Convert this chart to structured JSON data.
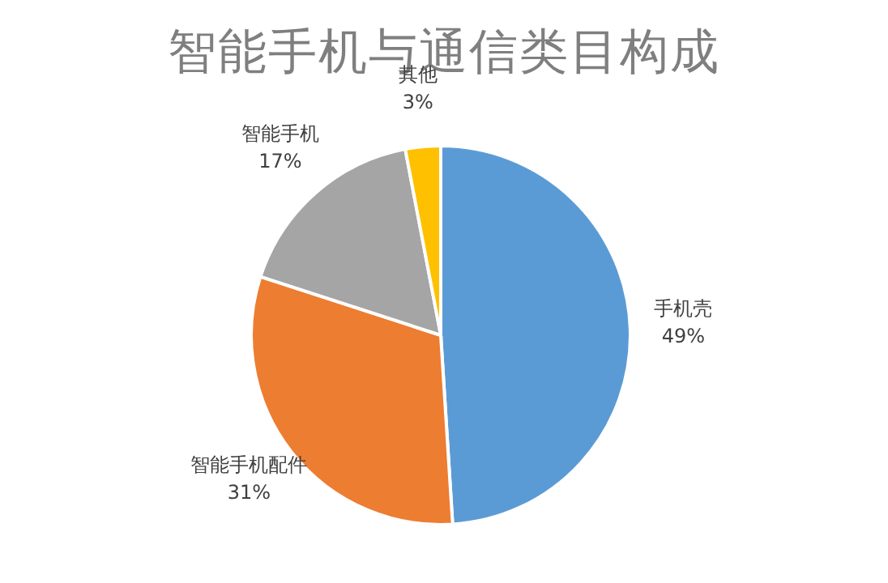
{
  "chart_data": {
    "type": "pie",
    "title": "智能手机与通信类目构成",
    "categories": [
      "手机壳",
      "智能手机配件",
      "智能手机",
      "其他"
    ],
    "values": [
      49,
      31,
      17,
      3
    ],
    "value_labels": [
      "49%",
      "31%",
      "17%",
      "3%"
    ],
    "colors": [
      "#5b9bd5",
      "#ed7d31",
      "#a5a5a5",
      "#ffc000"
    ]
  }
}
